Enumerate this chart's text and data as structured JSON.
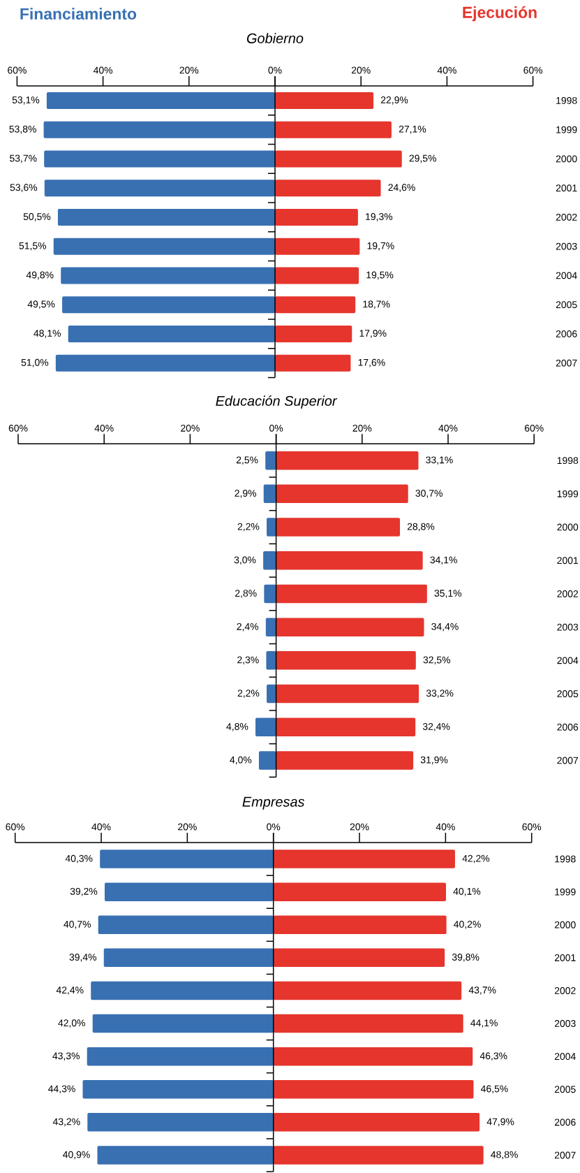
{
  "chart_data": [
    {
      "type": "bar",
      "orientation": "horizontal",
      "title": "Gobierno",
      "tick_labels": "x",
      "categories": [
        "1998",
        "1999",
        "2000",
        "2001",
        "2002",
        "2003",
        "2004",
        "2005",
        "2006",
        "2007"
      ],
      "series": [
        {
          "name": "Financiamiento",
          "color": "#3870b2",
          "values": [
            53.1,
            53.8,
            53.7,
            53.6,
            50.5,
            51.5,
            49.8,
            49.5,
            48.1,
            51.0
          ],
          "value_labels": [
            "53,1%",
            "53,8%",
            "53,7%",
            "53,6%",
            "50,5%",
            "51,5%",
            "49,8%",
            "49,5%",
            "48,1%",
            "51,0%"
          ]
        }
      ],
      "xlim": [
        60,
        0
      ],
      "xticks": [
        {
          "value": 60,
          "label": "60%"
        },
        {
          "value": 40,
          "label": "40%"
        },
        {
          "value": 20,
          "label": "20%"
        },
        {
          "value": 0,
          "label": "0%"
        }
      ]
    },
    {
      "type": "bar",
      "orientation": "horizontal",
      "categories": [
        "1998",
        "1999",
        "2000",
        "2001",
        "2002",
        "2003",
        "2004",
        "2005",
        "2006",
        "2007"
      ],
      "series": [
        {
          "name": "Ejecución",
          "color": "#e5352d",
          "values": [
            22.9,
            27.1,
            29.5,
            24.6,
            19.3,
            19.7,
            19.5,
            18.7,
            17.9,
            17.6
          ],
          "value_labels": [
            "22,9%",
            "27,1%",
            "29,5%",
            "24,6%",
            "19,3%",
            "19,7%",
            "19,5%",
            "18,7%",
            "17,9%",
            "17,6%"
          ]
        }
      ],
      "xlim": [
        0,
        60
      ],
      "xticks": [
        {
          "value": 0,
          "label": null
        },
        {
          "value": 20,
          "label": "20%"
        },
        {
          "value": 40,
          "label": "40%"
        },
        {
          "value": 60,
          "label": "60%"
        }
      ]
    },
    {
      "type": "bar",
      "orientation": "horizontal",
      "title": "Educación Superior",
      "tick_labels": "x",
      "categories": [
        "1998",
        "1999",
        "2000",
        "2001",
        "2002",
        "2003",
        "2004",
        "2005",
        "2006",
        "2007"
      ],
      "series": [
        {
          "color": "#3870b2",
          "values": [
            2.5,
            2.9,
            2.2,
            3.0,
            2.8,
            2.4,
            2.3,
            2.2,
            4.8,
            4.0
          ],
          "value_labels": [
            "2,5%",
            "2,9%",
            "2,2%",
            "3,0%",
            "2,8%",
            "2,4%",
            "2,3%",
            "2,2%",
            "4,8%",
            "4,0%"
          ]
        }
      ],
      "xlim": [
        60,
        0
      ],
      "xticks": [
        {
          "value": 60,
          "label": "60%"
        },
        {
          "value": 40,
          "label": "40%"
        },
        {
          "value": 20,
          "label": "20%"
        },
        {
          "value": 0,
          "label": "0%"
        }
      ]
    },
    {
      "type": "bar",
      "orientation": "horizontal",
      "categories": [
        "1998",
        "1999",
        "2000",
        "2001",
        "2002",
        "2003",
        "2004",
        "2005",
        "2006",
        "2007"
      ],
      "series": [
        {
          "color": "#e5352d",
          "values": [
            33.1,
            30.7,
            28.8,
            34.1,
            35.1,
            34.4,
            32.5,
            33.2,
            32.4,
            31.9
          ],
          "value_labels": [
            "33,1%",
            "30,7%",
            "28,8%",
            "34,1%",
            "35,1%",
            "34,4%",
            "32,5%",
            "33,2%",
            "32,4%",
            "31,9%"
          ]
        }
      ],
      "xlim": [
        0,
        60
      ],
      "xticks": [
        {
          "value": 0,
          "label": null
        },
        {
          "value": 20,
          "label": "20%"
        },
        {
          "value": 40,
          "label": "40%"
        },
        {
          "value": 60,
          "label": "60%"
        }
      ]
    },
    {
      "type": "bar",
      "orientation": "horizontal",
      "title": "Empresas",
      "tick_labels": "x",
      "categories": [
        "1998",
        "1999",
        "2000",
        "2001",
        "2002",
        "2003",
        "2004",
        "2005",
        "2006",
        "2007"
      ],
      "series": [
        {
          "color": "#3870b2",
          "values": [
            40.3,
            39.2,
            40.7,
            39.4,
            42.4,
            42.0,
            43.3,
            44.3,
            43.2,
            40.9
          ],
          "value_labels": [
            "40,3%",
            "39,2%",
            "40,7%",
            "39,4%",
            "42,4%",
            "42,0%",
            "43,3%",
            "44,3%",
            "43,2%",
            "40,9%"
          ]
        }
      ],
      "xlim": [
        60,
        0
      ],
      "xticks": [
        {
          "value": 60,
          "label": "60%"
        },
        {
          "value": 40,
          "label": "40%"
        },
        {
          "value": 20,
          "label": "20%"
        },
        {
          "value": 0,
          "label": "0%"
        }
      ]
    },
    {
      "type": "bar",
      "orientation": "horizontal",
      "categories": [
        "1998",
        "1999",
        "2000",
        "2001",
        "2002",
        "2003",
        "2004",
        "2005",
        "2006",
        "2007"
      ],
      "series": [
        {
          "color": "#e5352d",
          "values": [
            42.2,
            40.1,
            40.2,
            39.8,
            43.7,
            44.1,
            46.3,
            46.5,
            47.9,
            48.8
          ],
          "value_labels": [
            "42,2%",
            "40,1%",
            "40,2%",
            "39,8%",
            "43,7%",
            "44,1%",
            "46,3%",
            "46,5%",
            "47,9%",
            "48,8%"
          ]
        }
      ],
      "xlim": [
        0,
        60
      ],
      "xticks": [
        {
          "value": 0,
          "label": null
        },
        {
          "value": 20,
          "label": "20%"
        },
        {
          "value": 40,
          "label": "40%"
        },
        {
          "value": 60,
          "label": "60%"
        }
      ]
    }
  ]
}
